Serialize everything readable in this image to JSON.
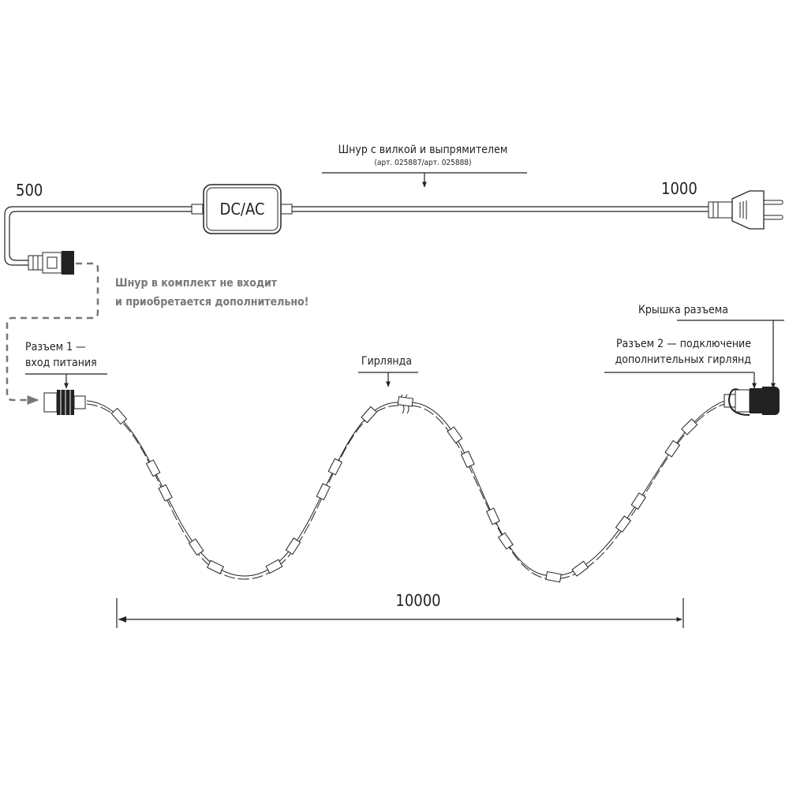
{
  "cord": {
    "title": "Шнур с вилкой и выпрямителем",
    "article": "(арт. 025887/арт. 025888)",
    "module_label": "DC/AC",
    "length_left": "500",
    "length_right": "1000"
  },
  "note": {
    "line1": "Шнур в комплект не входит",
    "line2": "и приобретается дополнительно!"
  },
  "connector1": {
    "line1": "Разъем 1 —",
    "line2": "вход питания"
  },
  "garland": {
    "label": "Гирлянда"
  },
  "connector2": {
    "line1": "Разъем 2 — подключение",
    "line2": "дополнительных гирлянд"
  },
  "cap": {
    "label": "Крышка разъема"
  },
  "dimension": {
    "length": "10000"
  },
  "colors": {
    "line": "#222222",
    "note": "#777777",
    "dashed": "#777777"
  }
}
